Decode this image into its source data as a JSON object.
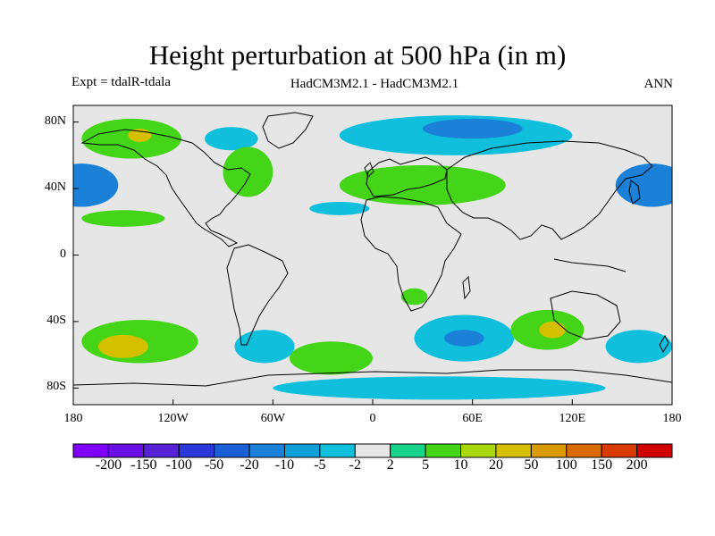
{
  "title": "Height perturbation at 500 hPa (in m)",
  "experiment": "Expt = tdalR-tdala",
  "models": "HadCM3M2.1 - HadCM3M2.1",
  "season": "ANN",
  "colors": {
    "land_neutral": "#e6e6e6",
    "coast": "#000000"
  },
  "chart_data": {
    "type": "heatmap",
    "title": "Height perturbation at 500 hPa (in m)",
    "variable": "geopotential height perturbation",
    "units": "m",
    "lon_range": [
      -180,
      180
    ],
    "lat_range": [
      -90,
      90
    ],
    "x_ticks": [
      {
        "value": -180,
        "label": "180"
      },
      {
        "value": -120,
        "label": "120W"
      },
      {
        "value": -60,
        "label": "60W"
      },
      {
        "value": 0,
        "label": "0"
      },
      {
        "value": 60,
        "label": "60E"
      },
      {
        "value": 120,
        "label": "120E"
      },
      {
        "value": 180,
        "label": "180"
      }
    ],
    "y_ticks": [
      {
        "value": 80,
        "label": "80N"
      },
      {
        "value": 40,
        "label": "40N"
      },
      {
        "value": 0,
        "label": "0"
      },
      {
        "value": -40,
        "label": "40S"
      },
      {
        "value": -80,
        "label": "80S"
      }
    ],
    "colorbar": {
      "labels": [
        "-200",
        "-150",
        "-100",
        "-50",
        "-20",
        "-10",
        "-5",
        "-2",
        "2",
        "5",
        "10",
        "20",
        "50",
        "100",
        "150",
        "200"
      ],
      "colors": [
        "#7f00ff",
        "#6a0fe6",
        "#5522d6",
        "#2b37d8",
        "#1a5fd6",
        "#1a80d8",
        "#0f9fd8",
        "#10bfdc",
        "#e6e6e6",
        "#18d38a",
        "#44d418",
        "#a8d80a",
        "#d4c000",
        "#d89a00",
        "#d86a00",
        "#d83a00",
        "#d00000"
      ]
    },
    "regions": [
      {
        "lon": -175,
        "lat": 42,
        "rlon": 22,
        "rlat": 13,
        "value": -20
      },
      {
        "lon": 168,
        "lat": 42,
        "rlon": 22,
        "rlat": 13,
        "value": -20
      },
      {
        "lon": -145,
        "lat": 70,
        "rlon": 30,
        "rlat": 12,
        "value": 5
      },
      {
        "lon": -140,
        "lat": 72,
        "rlon": 7,
        "rlat": 4,
        "value": 20
      },
      {
        "lon": -85,
        "lat": 70,
        "rlon": 16,
        "rlat": 7,
        "value": -5
      },
      {
        "lon": -150,
        "lat": 22,
        "rlon": 25,
        "rlat": 5,
        "value": 5
      },
      {
        "lon": -75,
        "lat": 50,
        "rlon": 15,
        "rlat": 15,
        "value": 5
      },
      {
        "lon": -20,
        "lat": 28,
        "rlon": 18,
        "rlat": 4,
        "value": -5
      },
      {
        "lon": 30,
        "lat": 42,
        "rlon": 50,
        "rlat": 12,
        "value": 5
      },
      {
        "lon": 50,
        "lat": 72,
        "rlon": 70,
        "rlat": 12,
        "value": -5
      },
      {
        "lon": 60,
        "lat": 76,
        "rlon": 30,
        "rlat": 6,
        "value": -20
      },
      {
        "lon": -140,
        "lat": -52,
        "rlon": 35,
        "rlat": 13,
        "value": 5
      },
      {
        "lon": -150,
        "lat": -55,
        "rlon": 15,
        "rlat": 7,
        "value": 20
      },
      {
        "lon": -65,
        "lat": -55,
        "rlon": 18,
        "rlat": 10,
        "value": -5
      },
      {
        "lon": -25,
        "lat": -62,
        "rlon": 25,
        "rlat": 10,
        "value": 5
      },
      {
        "lon": 55,
        "lat": -50,
        "rlon": 30,
        "rlat": 14,
        "value": -5
      },
      {
        "lon": 55,
        "lat": -50,
        "rlon": 12,
        "rlat": 5,
        "value": -20
      },
      {
        "lon": 105,
        "lat": -45,
        "rlon": 22,
        "rlat": 12,
        "value": 5
      },
      {
        "lon": 108,
        "lat": -45,
        "rlon": 8,
        "rlat": 5,
        "value": 20
      },
      {
        "lon": 40,
        "lat": -80,
        "rlon": 100,
        "rlat": 7,
        "value": -5
      },
      {
        "lon": 160,
        "lat": -55,
        "rlon": 20,
        "rlat": 10,
        "value": -5
      },
      {
        "lon": 25,
        "lat": -25,
        "rlon": 8,
        "rlat": 5,
        "value": 5
      }
    ]
  }
}
